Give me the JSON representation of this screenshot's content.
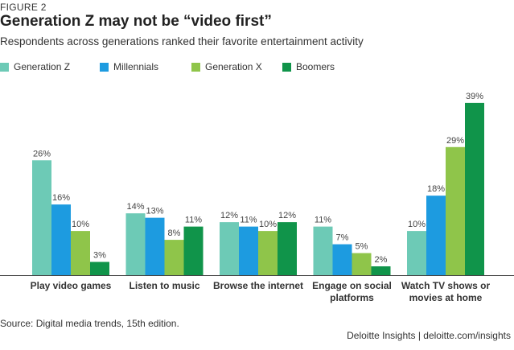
{
  "figure_label": "FIGURE 2",
  "colors": {
    "Generation Z": "#6dcab6",
    "Millennials": "#1d9be0",
    "Generation X": "#8fc54a",
    "Boomers": "#10944a"
  },
  "chart_data": {
    "type": "bar",
    "title": "Generation Z may not be “video first”",
    "subtitle": "Respondents across generations ranked their favorite entertainment activity",
    "xlabel": "",
    "ylabel": "",
    "ylim": [
      0,
      40
    ],
    "grid": false,
    "legend": "top-left",
    "categories": [
      [
        "Play video games"
      ],
      [
        "Listen to music"
      ],
      [
        "Browse the internet"
      ],
      [
        "Engage on social",
        "platforms"
      ],
      [
        "Watch TV shows or",
        "movies at home"
      ]
    ],
    "series": [
      {
        "name": "Generation Z",
        "values": [
          26,
          14,
          12,
          11,
          10
        ]
      },
      {
        "name": "Millennials",
        "values": [
          16,
          13,
          11,
          7,
          18
        ]
      },
      {
        "name": "Generation X",
        "values": [
          10,
          8,
          10,
          5,
          29
        ]
      },
      {
        "name": "Boomers",
        "values": [
          3,
          11,
          12,
          2,
          39
        ]
      }
    ],
    "value_suffix": "%"
  },
  "source": "Source: Digital media trends, 15th edition.",
  "brand": "Deloitte Insights | deloitte.com/insights"
}
